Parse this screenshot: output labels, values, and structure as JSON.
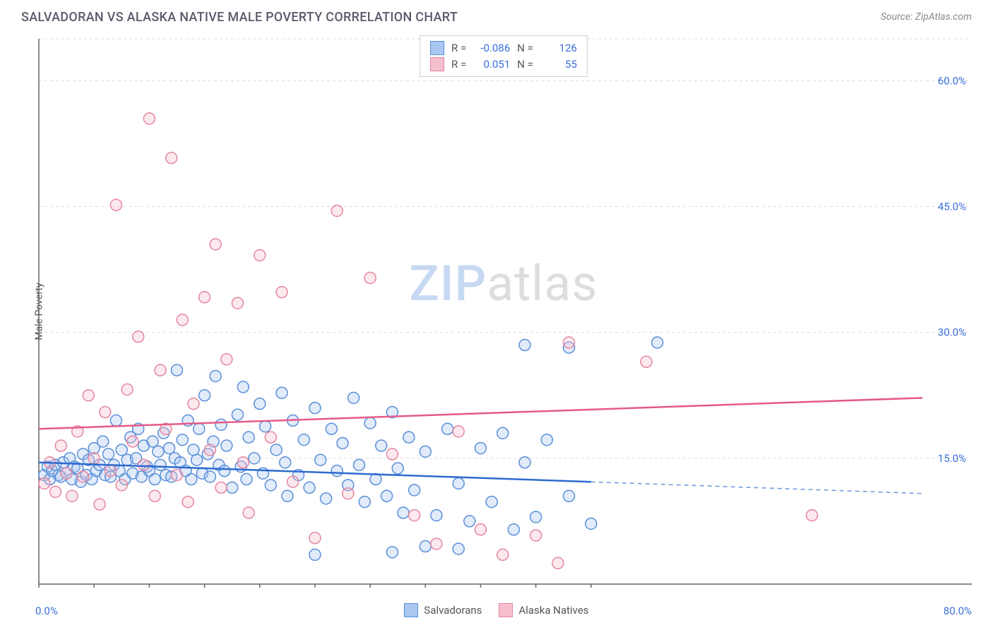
{
  "title": "SALVADORAN VS ALASKA NATIVE MALE POVERTY CORRELATION CHART",
  "source": "Source: ZipAtlas.com",
  "ylabel": "Male Poverty",
  "watermark": {
    "part1": "ZIP",
    "part2": "atlas"
  },
  "chart": {
    "type": "scatter",
    "background_color": "#ffffff",
    "grid_color": "#dcdcdc",
    "axis_color": "#666666",
    "xlim": [
      0,
      80
    ],
    "ylim": [
      0,
      65
    ],
    "x_range_labels": [
      "0.0%",
      "80.0%"
    ],
    "yticks": [
      15,
      30,
      45,
      60
    ],
    "ytick_labels": [
      "15.0%",
      "30.0%",
      "45.0%",
      "60.0%"
    ],
    "xticks": [
      0,
      5,
      10,
      15,
      20,
      25,
      30,
      35,
      40,
      45,
      50
    ],
    "marker_radius": 8,
    "marker_stroke_width": 1.5,
    "marker_fill_opacity": 0.35,
    "series": [
      {
        "name": "Salvadorans",
        "fill": "#a9c7f0",
        "stroke": "#5a8fd8",
        "line_color": "#2e6bd0",
        "trend": {
          "y_at_x0": 14.5,
          "y_at_x80": 10.8,
          "solid_until_x": 50
        },
        "R": "-0.086",
        "N": "126",
        "points": [
          [
            0.5,
            13
          ],
          [
            0.8,
            14
          ],
          [
            1,
            12.5
          ],
          [
            1.2,
            13.5
          ],
          [
            1.5,
            14.2
          ],
          [
            1.8,
            13
          ],
          [
            2,
            12.8
          ],
          [
            2.2,
            14.5
          ],
          [
            2.5,
            13.2
          ],
          [
            2.8,
            15
          ],
          [
            3,
            12.5
          ],
          [
            3.2,
            14
          ],
          [
            3.5,
            13.8
          ],
          [
            3.8,
            12.2
          ],
          [
            4,
            15.5
          ],
          [
            4.3,
            13
          ],
          [
            4.5,
            14.8
          ],
          [
            4.8,
            12.5
          ],
          [
            5,
            16.2
          ],
          [
            5.2,
            13.5
          ],
          [
            5.5,
            14.2
          ],
          [
            5.8,
            17
          ],
          [
            6,
            13
          ],
          [
            6.3,
            15.5
          ],
          [
            6.5,
            12.8
          ],
          [
            6.8,
            14.2
          ],
          [
            7,
            19.5
          ],
          [
            7.3,
            13.5
          ],
          [
            7.5,
            16
          ],
          [
            7.8,
            12.5
          ],
          [
            8,
            14.8
          ],
          [
            8.3,
            17.5
          ],
          [
            8.5,
            13.2
          ],
          [
            8.8,
            15
          ],
          [
            9,
            18.5
          ],
          [
            9.3,
            12.8
          ],
          [
            9.5,
            16.5
          ],
          [
            9.8,
            14
          ],
          [
            10,
            13.5
          ],
          [
            10.3,
            17
          ],
          [
            10.5,
            12.5
          ],
          [
            10.8,
            15.8
          ],
          [
            11,
            14.2
          ],
          [
            11.3,
            18
          ],
          [
            11.5,
            13
          ],
          [
            11.8,
            16.2
          ],
          [
            12,
            12.8
          ],
          [
            12.3,
            15
          ],
          [
            12.5,
            25.5
          ],
          [
            12.8,
            14.5
          ],
          [
            13,
            17.2
          ],
          [
            13.3,
            13.5
          ],
          [
            13.5,
            19.5
          ],
          [
            13.8,
            12.5
          ],
          [
            14,
            16
          ],
          [
            14.3,
            14.8
          ],
          [
            14.5,
            18.5
          ],
          [
            14.8,
            13.2
          ],
          [
            15,
            22.5
          ],
          [
            15.3,
            15.5
          ],
          [
            15.5,
            12.8
          ],
          [
            15.8,
            17
          ],
          [
            16,
            24.8
          ],
          [
            16.3,
            14.2
          ],
          [
            16.5,
            19
          ],
          [
            16.8,
            13.5
          ],
          [
            17,
            16.5
          ],
          [
            17.5,
            11.5
          ],
          [
            18,
            20.2
          ],
          [
            18.3,
            14
          ],
          [
            18.5,
            23.5
          ],
          [
            18.8,
            12.5
          ],
          [
            19,
            17.5
          ],
          [
            19.5,
            15
          ],
          [
            20,
            21.5
          ],
          [
            20.3,
            13.2
          ],
          [
            20.5,
            18.8
          ],
          [
            21,
            11.8
          ],
          [
            21.5,
            16
          ],
          [
            22,
            22.8
          ],
          [
            22.3,
            14.5
          ],
          [
            22.5,
            10.5
          ],
          [
            23,
            19.5
          ],
          [
            23.5,
            13
          ],
          [
            24,
            17.2
          ],
          [
            24.5,
            11.5
          ],
          [
            25,
            21
          ],
          [
            25.5,
            14.8
          ],
          [
            26,
            10.2
          ],
          [
            26.5,
            18.5
          ],
          [
            27,
            13.5
          ],
          [
            27.5,
            16.8
          ],
          [
            28,
            11.8
          ],
          [
            28.5,
            22.2
          ],
          [
            29,
            14.2
          ],
          [
            29.5,
            9.8
          ],
          [
            30,
            19.2
          ],
          [
            30.5,
            12.5
          ],
          [
            31,
            16.5
          ],
          [
            31.5,
            10.5
          ],
          [
            32,
            20.5
          ],
          [
            32.5,
            13.8
          ],
          [
            33,
            8.5
          ],
          [
            33.5,
            17.5
          ],
          [
            34,
            11.2
          ],
          [
            35,
            15.8
          ],
          [
            36,
            8.2
          ],
          [
            37,
            18.5
          ],
          [
            38,
            12
          ],
          [
            39,
            7.5
          ],
          [
            40,
            16.2
          ],
          [
            41,
            9.8
          ],
          [
            42,
            18
          ],
          [
            43,
            6.5
          ],
          [
            44,
            14.5
          ],
          [
            45,
            8
          ],
          [
            46,
            17.2
          ],
          [
            48,
            10.5
          ],
          [
            50,
            7.2
          ],
          [
            25,
            3.5
          ],
          [
            32,
            3.8
          ],
          [
            38,
            4.2
          ],
          [
            35,
            4.5
          ],
          [
            44,
            28.5
          ],
          [
            48,
            28.2
          ],
          [
            56,
            28.8
          ]
        ]
      },
      {
        "name": "Alaska Natives",
        "fill": "#f5bfce",
        "stroke": "#e686a0",
        "line_color": "#e55a88",
        "trend": {
          "y_at_x0": 18.5,
          "y_at_x80": 22.2,
          "solid_until_x": 80
        },
        "R": "0.051",
        "N": "55",
        "points": [
          [
            0.5,
            12
          ],
          [
            1,
            14.5
          ],
          [
            1.5,
            11
          ],
          [
            2,
            16.5
          ],
          [
            2.5,
            13.2
          ],
          [
            3,
            10.5
          ],
          [
            3.5,
            18.2
          ],
          [
            4,
            12.8
          ],
          [
            4.5,
            22.5
          ],
          [
            5,
            15
          ],
          [
            5.5,
            9.5
          ],
          [
            6,
            20.5
          ],
          [
            6.5,
            13.5
          ],
          [
            7,
            45.2
          ],
          [
            7.5,
            11.8
          ],
          [
            8,
            23.2
          ],
          [
            8.5,
            17
          ],
          [
            9,
            29.5
          ],
          [
            9.5,
            14.2
          ],
          [
            10,
            55.5
          ],
          [
            10.5,
            10.5
          ],
          [
            11,
            25.5
          ],
          [
            11.5,
            18.5
          ],
          [
            12,
            50.8
          ],
          [
            12.5,
            13
          ],
          [
            13,
            31.5
          ],
          [
            13.5,
            9.8
          ],
          [
            14,
            21.5
          ],
          [
            15,
            34.2
          ],
          [
            15.5,
            16
          ],
          [
            16,
            40.5
          ],
          [
            16.5,
            11.5
          ],
          [
            17,
            26.8
          ],
          [
            18,
            33.5
          ],
          [
            18.5,
            14.5
          ],
          [
            19,
            8.5
          ],
          [
            20,
            39.2
          ],
          [
            21,
            17.5
          ],
          [
            22,
            34.8
          ],
          [
            23,
            12.2
          ],
          [
            25,
            5.5
          ],
          [
            27,
            44.5
          ],
          [
            28,
            10.8
          ],
          [
            30,
            36.5
          ],
          [
            32,
            15.5
          ],
          [
            34,
            8.2
          ],
          [
            36,
            4.8
          ],
          [
            38,
            18.2
          ],
          [
            40,
            6.5
          ],
          [
            42,
            3.5
          ],
          [
            45,
            5.8
          ],
          [
            48,
            28.8
          ],
          [
            55,
            26.5
          ],
          [
            70,
            8.2
          ],
          [
            47,
            2.5
          ]
        ]
      }
    ]
  },
  "legend_bottom": [
    {
      "label": "Salvadorans",
      "fill": "#a9c7f0",
      "stroke": "#5a8fd8"
    },
    {
      "label": "Alaska Natives",
      "fill": "#f5bfce",
      "stroke": "#e686a0"
    }
  ]
}
